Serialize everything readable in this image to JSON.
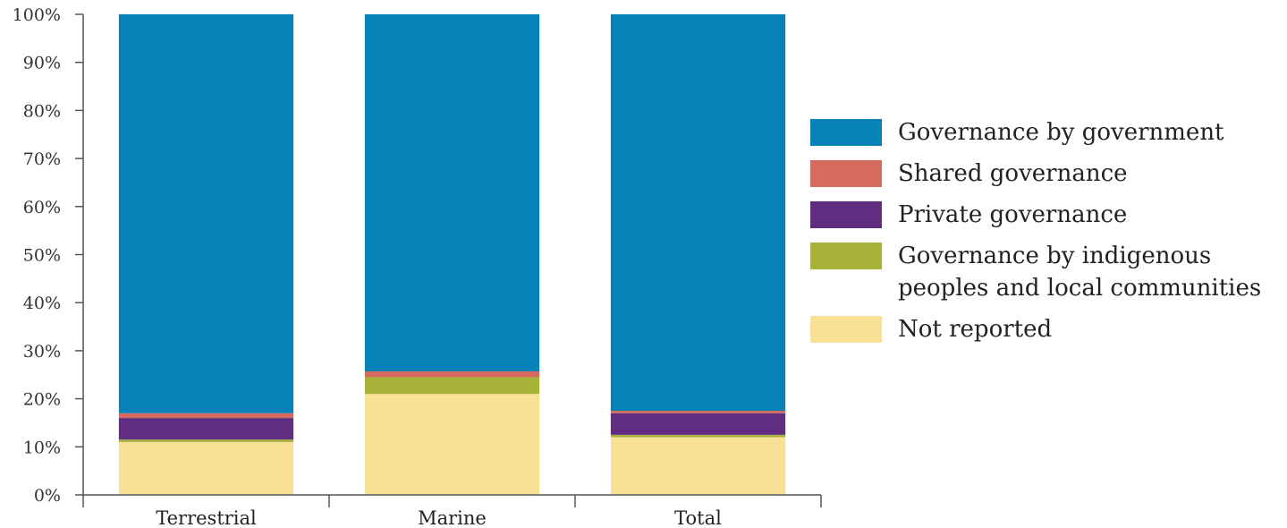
{
  "chart_data": {
    "type": "bar",
    "stacked": true,
    "categories": [
      "Terrestrial",
      "Marine",
      "Total"
    ],
    "series": [
      {
        "name": "Not reported",
        "color": "#f8e196",
        "values": [
          11,
          21,
          12
        ]
      },
      {
        "name": "Governance by indigenous peoples and local communities",
        "color": "#a7b23a",
        "values": [
          0.5,
          3.5,
          0.5
        ]
      },
      {
        "name": "Private governance",
        "color": "#612d81",
        "values": [
          4.5,
          0,
          4.5
        ]
      },
      {
        "name": "Shared governance",
        "color": "#d76a5f",
        "values": [
          1,
          1.2,
          0.5
        ]
      },
      {
        "name": "Governance by government",
        "color": "#0682b8",
        "values": [
          83,
          74.3,
          82.5
        ]
      }
    ],
    "y_ticks": [
      "0%",
      "10%",
      "20%",
      "30%",
      "40%",
      "50%",
      "60%",
      "70%",
      "80%",
      "90%",
      "100%"
    ],
    "ylim": [
      0,
      100
    ],
    "legend_position": "right",
    "grid": false,
    "title": "",
    "xlabel": "",
    "ylabel": ""
  },
  "legend": [
    {
      "label": "Governance by government",
      "color": "#0682b8"
    },
    {
      "label": "Shared governance",
      "color": "#d76a5f"
    },
    {
      "label": "Private governance",
      "color": "#612d81"
    },
    {
      "label": "Governance by indigenous peoples and local communities",
      "color": "#a7b23a"
    },
    {
      "label": "Not reported",
      "color": "#f8e196"
    }
  ]
}
